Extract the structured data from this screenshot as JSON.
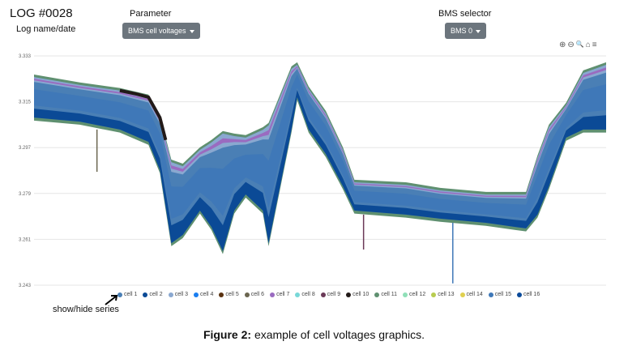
{
  "header": {
    "log_title": "LOG #0028",
    "log_name_label": "Log name/date",
    "parameter_label": "Parameter",
    "parameter_value": "BMS cell voltages",
    "bms_label": "BMS selector",
    "bms_value": "BMS 0"
  },
  "toolbar": {
    "zoom_in": "⊕",
    "zoom_out": "⊖",
    "search": "🔍",
    "home": "⌂",
    "menu": "≡"
  },
  "annotation": "show/hide series",
  "caption": {
    "bold": "Figure 2:",
    "text": " example of cell voltages graphics."
  },
  "chart_data": {
    "type": "line",
    "yticks": [
      "3.333",
      "3.315",
      "3.297",
      "3.279",
      "3.261",
      "3.243"
    ],
    "ylim": [
      3.243,
      3.333
    ],
    "grid": true,
    "legend_position": "bottom",
    "series_names": [
      "cell 1",
      "cell 2",
      "cell 3",
      "cell 4",
      "cell 5",
      "cell 6",
      "cell 7",
      "cell 8",
      "cell 9",
      "cell 10",
      "cell 11",
      "cell 12",
      "cell 13",
      "cell 14",
      "cell 15",
      "cell 16"
    ],
    "colors": [
      "#4a7fb5",
      "#0b4a96",
      "#8aa8d0",
      "#1a7ef0",
      "#5a3210",
      "#6b6650",
      "#9a6bc0",
      "#78d8d8",
      "#6b3a58",
      "#221a18",
      "#5f9070",
      "#90e0b8",
      "#b8cc50",
      "#e0d050",
      "#3f78b8",
      "#0a4a9a"
    ],
    "x": [
      0,
      8,
      15,
      20,
      22,
      24,
      26,
      29,
      31,
      33,
      35,
      37,
      40,
      41,
      43,
      45,
      46,
      48,
      51,
      54,
      56,
      65,
      71,
      79,
      84,
      86,
      88,
      90,
      93,
      96,
      100
    ],
    "max": [
      3.3247,
      3.3216,
      3.3194,
      3.3168,
      3.3088,
      3.2913,
      3.2897,
      3.2961,
      3.299,
      3.3025,
      3.3015,
      3.3009,
      3.304,
      3.3057,
      3.3168,
      3.3279,
      3.3295,
      3.32,
      3.3104,
      3.2961,
      3.2834,
      3.2824,
      3.2802,
      3.2786,
      3.2786,
      3.2786,
      3.2929,
      3.305,
      3.3136,
      3.3263,
      3.3295
    ],
    "min": [
      3.3088,
      3.3072,
      3.3041,
      3.2993,
      3.2882,
      3.2595,
      3.2627,
      3.2723,
      3.2659,
      3.2564,
      3.2723,
      3.2786,
      3.2723,
      3.2595,
      3.2818,
      3.3041,
      3.3168,
      3.3041,
      3.2945,
      3.2818,
      3.2723,
      3.2707,
      3.2691,
      3.2675,
      3.2659,
      3.2653,
      3.2707,
      3.2818,
      3.3009,
      3.3041,
      3.3041
    ],
    "spikes": [
      {
        "x": 11,
        "y": 3.2875,
        "series": "cell 6"
      },
      {
        "x": 57.6,
        "y": 3.257,
        "series": "cell 9"
      },
      {
        "x": 73.2,
        "y": 3.2437,
        "series": "cell 15"
      }
    ]
  }
}
